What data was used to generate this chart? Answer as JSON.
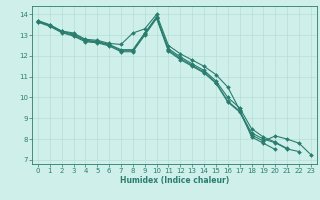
{
  "xlabel": "Humidex (Indice chaleur)",
  "background_color": "#cff0ea",
  "grid_color": "#b8ddd7",
  "line_color": "#2a7d6e",
  "markersize": 2.0,
  "linewidth": 0.8,
  "xlim": [
    -0.5,
    23.5
  ],
  "ylim": [
    6.8,
    14.4
  ],
  "xticks": [
    0,
    1,
    2,
    3,
    4,
    5,
    6,
    7,
    8,
    9,
    10,
    11,
    12,
    13,
    14,
    15,
    16,
    17,
    18,
    19,
    20,
    21,
    22,
    23
  ],
  "yticks": [
    7,
    8,
    9,
    10,
    11,
    12,
    13,
    14
  ],
  "series": [
    {
      "x": [
        0,
        1,
        2,
        3,
        4,
        5,
        6,
        7,
        8,
        9,
        10,
        11,
        12,
        13,
        14,
        15,
        16,
        17,
        18,
        19,
        20
      ],
      "y": [
        13.7,
        13.5,
        13.2,
        13.1,
        12.8,
        12.75,
        12.6,
        12.55,
        13.1,
        13.3,
        14.0,
        12.5,
        12.1,
        11.8,
        11.5,
        11.1,
        10.5,
        9.4,
        8.1,
        7.8,
        7.5
      ]
    },
    {
      "x": [
        0,
        1,
        2,
        3,
        4,
        5,
        6,
        7,
        8,
        9,
        10,
        11,
        12,
        13,
        14,
        15,
        16,
        17,
        18,
        19,
        20,
        21
      ],
      "y": [
        13.68,
        13.48,
        13.18,
        13.05,
        12.75,
        12.7,
        12.55,
        12.3,
        12.3,
        13.1,
        13.88,
        12.35,
        11.95,
        11.62,
        11.3,
        10.8,
        10.0,
        9.5,
        8.5,
        8.1,
        7.85,
        7.55
      ]
    },
    {
      "x": [
        0,
        1,
        2,
        3,
        4,
        5,
        6,
        7,
        8,
        9,
        10,
        11,
        12,
        13,
        14,
        15,
        16,
        17,
        18,
        19,
        20,
        21,
        22
      ],
      "y": [
        13.65,
        13.45,
        13.15,
        13.0,
        12.72,
        12.67,
        12.52,
        12.25,
        12.25,
        13.05,
        13.84,
        12.28,
        11.88,
        11.55,
        11.22,
        10.72,
        9.82,
        9.35,
        8.3,
        8.0,
        7.82,
        7.52,
        7.4
      ]
    },
    {
      "x": [
        0,
        1,
        2,
        3,
        4,
        5,
        6,
        7,
        8,
        9,
        10,
        11,
        12,
        13,
        14,
        15,
        16,
        17,
        18,
        19,
        20,
        21,
        22,
        23
      ],
      "y": [
        13.62,
        13.42,
        13.12,
        12.95,
        12.68,
        12.63,
        12.48,
        12.2,
        12.2,
        13.0,
        13.8,
        12.22,
        11.82,
        11.5,
        11.18,
        10.68,
        9.78,
        9.3,
        8.2,
        7.9,
        8.15,
        8.0,
        7.8,
        7.25
      ]
    }
  ]
}
